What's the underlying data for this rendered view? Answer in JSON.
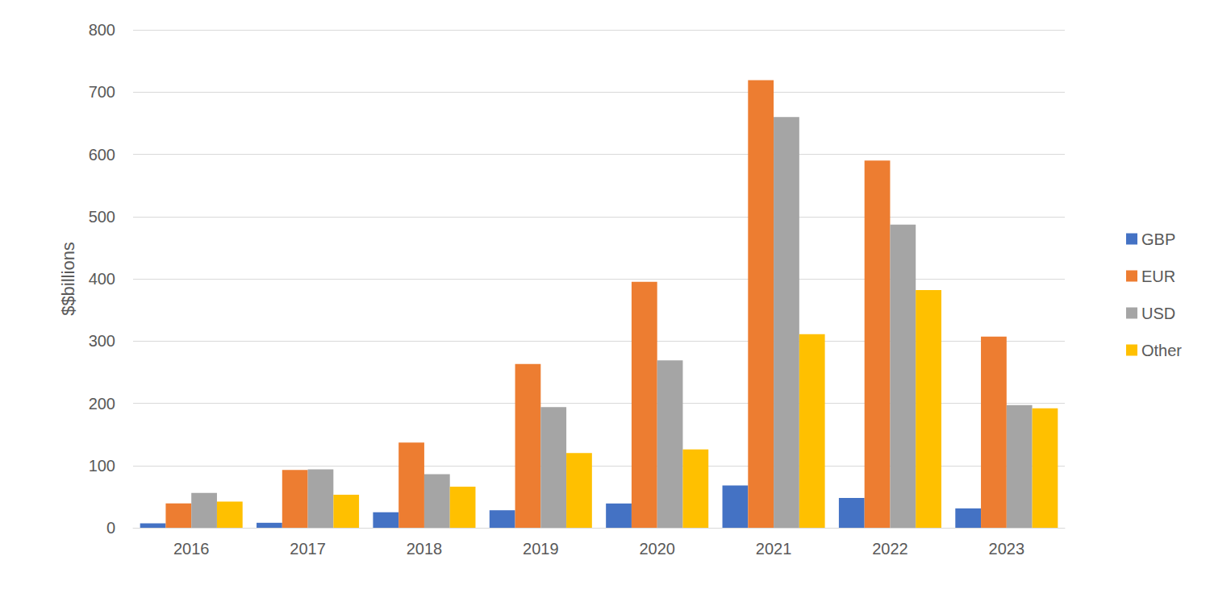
{
  "chart_data": {
    "type": "bar",
    "y_label": "$$billions",
    "categories": [
      "2016",
      "2017",
      "2018",
      "2019",
      "2020",
      "2021",
      "2022",
      "2023"
    ],
    "series": [
      {
        "name": "GBP",
        "color": "#4472c4",
        "values": [
          7,
          8,
          25,
          28,
          39,
          68,
          48,
          31
        ]
      },
      {
        "name": "EUR",
        "color": "#ed7d31",
        "values": [
          39,
          93,
          137,
          263,
          395,
          719,
          590,
          307
        ]
      },
      {
        "name": "USD",
        "color": "#a5a5a5",
        "values": [
          56,
          94,
          86,
          194,
          269,
          660,
          487,
          197
        ]
      },
      {
        "name": "Other",
        "color": "#ffc000",
        "values": [
          42,
          53,
          66,
          120,
          126,
          311,
          382,
          192
        ]
      }
    ],
    "ylim": [
      0,
      800
    ],
    "yticks": [
      0,
      100,
      200,
      300,
      400,
      500,
      600,
      700,
      800
    ],
    "grid": true,
    "legend": "right"
  }
}
